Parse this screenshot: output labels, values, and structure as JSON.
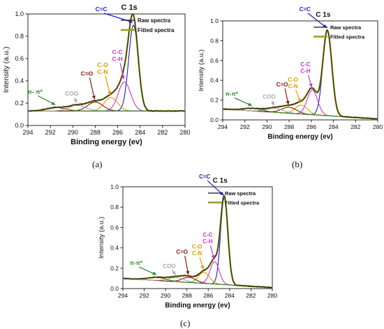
{
  "colors": {
    "raw": "#111111",
    "fitted": "#9a9a22",
    "cc": "#1a1ad4",
    "cc_ch": "#cc33cc",
    "co_cn": "#e09a00",
    "c_o": "#8a1414",
    "coo": "#a8a8a8",
    "pipi": "#22881e",
    "baseline": "#6b6b20"
  },
  "captions": {
    "a": "(a)",
    "b": "(b)",
    "c": "(c)"
  },
  "chart_data": [
    {
      "type": "line",
      "title": "C 1s",
      "xlabel": "Binding energy (ev)",
      "ylabel": "Intensity (a.u.)",
      "xlim": [
        294,
        280
      ],
      "ylim": [
        0,
        1.0
      ],
      "xticks": [
        294,
        292,
        290,
        288,
        286,
        284,
        282,
        280
      ],
      "yticks": [
        0.0,
        0.2,
        0.4,
        0.6,
        0.8,
        1.0
      ],
      "tick_labels_x": [
        "294",
        "292",
        "290",
        "288",
        "286",
        "284",
        "282",
        "280"
      ],
      "tick_labels_y": [
        "0.0",
        "0.2",
        "0.4",
        "0.6",
        "0.8",
        "1.0"
      ],
      "legend_position": "top-right",
      "legend": [
        "Raw spectra",
        "Fitted spectra"
      ],
      "baseline": [
        0.13,
        0.13
      ],
      "peaks": [
        {
          "label": "C=C",
          "center": 284.6,
          "height": 0.77,
          "width": 1.0
        },
        {
          "label": "C-C\nC-H",
          "center": 285.4,
          "height": 0.26,
          "width": 1.3
        },
        {
          "label": "C-O\nC-N",
          "center": 286.6,
          "height": 0.12,
          "width": 1.4
        },
        {
          "label": "C=O",
          "center": 288.0,
          "height": 0.08,
          "width": 1.6
        },
        {
          "label": "COO",
          "center": 289.6,
          "height": 0.05,
          "width": 1.8
        },
        {
          "label": "π- π*",
          "center": 291.5,
          "height": 0.03,
          "width": 2.0
        }
      ]
    },
    {
      "type": "line",
      "title": "C 1s",
      "xlabel": "Binding energy (ev)",
      "ylabel": "Intensity (a.u.)",
      "xlim": [
        294,
        280
      ],
      "ylim": [
        0,
        1.0
      ],
      "xticks": [
        294,
        292,
        290,
        288,
        286,
        284,
        282,
        280
      ],
      "yticks": [
        0.0,
        0.2,
        0.4,
        0.6,
        0.8,
        1.0
      ],
      "tick_labels_x": [
        "294",
        "292",
        "290",
        "288",
        "286",
        "284",
        "282",
        "280"
      ],
      "tick_labels_y": [
        "0.0",
        "0.2",
        "0.4",
        "0.6",
        "0.8",
        "1.0"
      ],
      "legend_position": "top-right",
      "legend": [
        "Raw spectra",
        "Fitted spectra"
      ],
      "baseline": [
        0.11,
        0.01
      ],
      "peaks": [
        {
          "label": "C=C",
          "center": 284.55,
          "height": 0.86,
          "width": 0.95
        },
        {
          "label": "C-C\nC-H",
          "center": 285.9,
          "height": 0.25,
          "width": 1.1
        },
        {
          "label": "C-O\nC-N",
          "center": 286.9,
          "height": 0.09,
          "width": 1.3
        },
        {
          "label": "C=O",
          "center": 288.0,
          "height": 0.06,
          "width": 1.6
        },
        {
          "label": "COO",
          "center": 289.3,
          "height": 0.04,
          "width": 1.8
        },
        {
          "label": "π-π*",
          "center": 291.3,
          "height": 0.025,
          "width": 2.0
        }
      ]
    },
    {
      "type": "line",
      "title": "C 1s",
      "xlabel": "Binding energy (ev)",
      "ylabel": "Intensity (a.u.)",
      "xlim": [
        294,
        280
      ],
      "ylim": [
        0,
        1.0
      ],
      "xticks": [
        294,
        292,
        290,
        288,
        286,
        284,
        282,
        280
      ],
      "yticks": [
        0.0,
        0.2,
        0.4,
        0.6,
        0.8,
        1.0
      ],
      "tick_labels_x": [
        "294",
        "292",
        "290",
        "288",
        "286",
        "284",
        "282",
        "280"
      ],
      "tick_labels_y": [
        "0.0",
        "0.2",
        "0.4",
        "0.6",
        "0.8",
        "1.0"
      ],
      "legend_position": "top-right",
      "legend": [
        "Raw spectra",
        "Fitted spectra"
      ],
      "baseline": [
        0.1,
        0.01
      ],
      "peaks": [
        {
          "label": "C=C",
          "center": 284.5,
          "height": 0.85,
          "width": 0.8
        },
        {
          "label": "C-C\nC-H",
          "center": 285.4,
          "height": 0.22,
          "width": 1.0
        },
        {
          "label": "C-O\nC-N",
          "center": 286.4,
          "height": 0.11,
          "width": 1.2
        },
        {
          "label": "C=O",
          "center": 287.8,
          "height": 0.05,
          "width": 1.5
        },
        {
          "label": "COO",
          "center": 289.0,
          "height": 0.04,
          "width": 1.8
        },
        {
          "label": "π-π*",
          "center": 290.8,
          "height": 0.03,
          "width": 2.0
        }
      ]
    }
  ]
}
